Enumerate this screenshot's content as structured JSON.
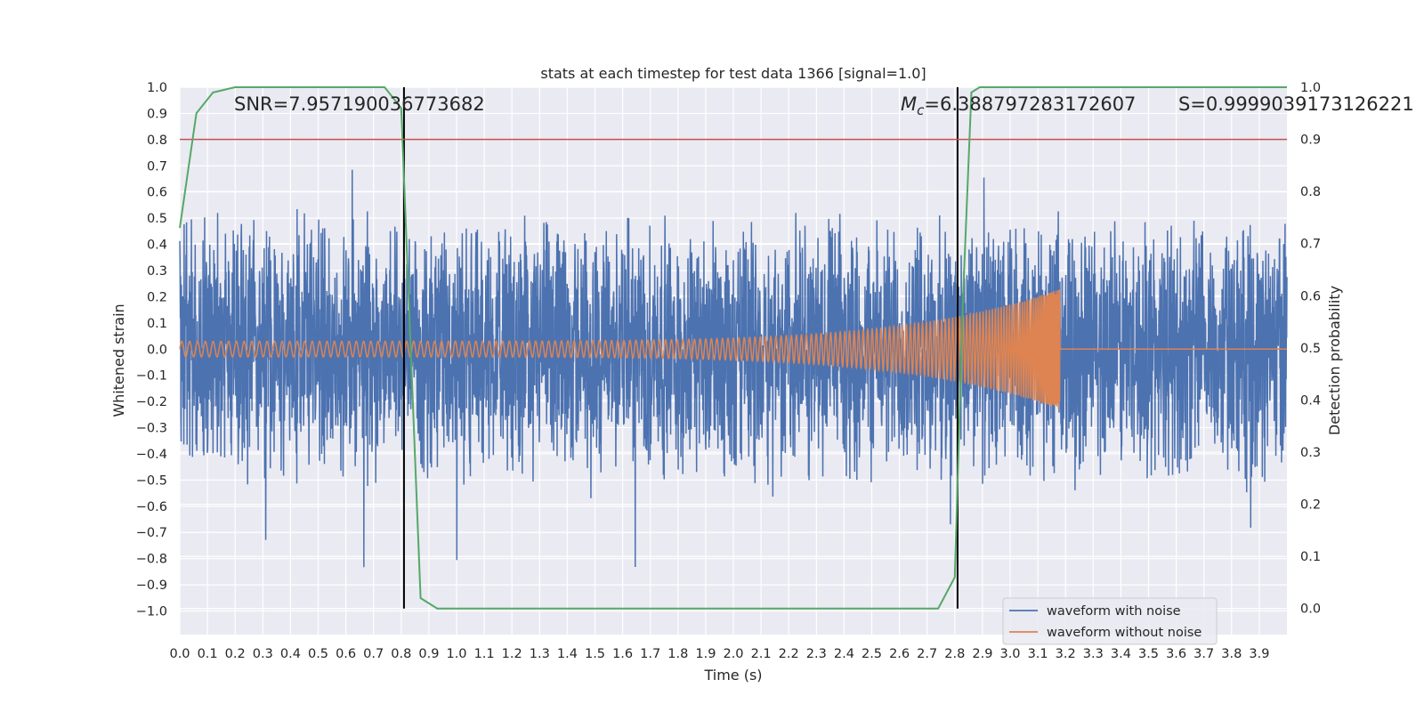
{
  "chart_data": {
    "type": "line",
    "title": "stats at each timestep for test data 1366 [signal=1.0]",
    "xlabel": "Time (s)",
    "ylabel": "Whitened strain",
    "y2label": "Detection probability",
    "xlim": [
      0.0,
      4.0
    ],
    "ylim": [
      -1.09,
      1.0
    ],
    "y2lim": [
      -0.05,
      1.0
    ],
    "xticks": [
      "0.0",
      "0.1",
      "0.2",
      "0.3",
      "0.4",
      "0.5",
      "0.6",
      "0.7",
      "0.8",
      "0.9",
      "1.0",
      "1.1",
      "1.2",
      "1.3",
      "1.4",
      "1.5",
      "1.6",
      "1.7",
      "1.8",
      "1.9",
      "2.0",
      "2.1",
      "2.2",
      "2.3",
      "2.4",
      "2.5",
      "2.6",
      "2.7",
      "2.8",
      "2.9",
      "3.0",
      "3.1",
      "3.2",
      "3.3",
      "3.4",
      "3.5",
      "3.6",
      "3.7",
      "3.8",
      "3.9"
    ],
    "yticks": [
      "1.0",
      "0.9",
      "0.8",
      "0.7",
      "0.6",
      "0.5",
      "0.4",
      "0.3",
      "0.2",
      "0.1",
      "0.0",
      "−0.1",
      "−0.2",
      "−0.3",
      "−0.4",
      "−0.5",
      "−0.6",
      "−0.7",
      "−0.8",
      "−0.9",
      "−1.0"
    ],
    "y2ticks": [
      "1.0",
      "0.9",
      "0.8",
      "0.7",
      "0.6",
      "0.5",
      "0.4",
      "0.3",
      "0.2",
      "0.1",
      "0.0"
    ],
    "annotations": {
      "snr": "SNR=7.957190036773682",
      "mc_symbol": "M",
      "mc_sub": "c",
      "mc_value": "=6.388797283172607",
      "s": "S=0.9999039173126221"
    },
    "threshold": 0.9,
    "vlines": [
      0.81,
      2.81
    ],
    "series": [
      {
        "name": "waveform with noise",
        "color": "#4c72b0",
        "kind": "noise",
        "amplitude": 0.55,
        "x_range": [
          0.0,
          4.0
        ]
      },
      {
        "name": "waveform without noise",
        "color": "#dd8452",
        "kind": "chirp",
        "amplitude_start": 0.03,
        "amplitude_end": 0.23,
        "merger_time": 3.18
      },
      {
        "name": "detection probability",
        "color": "#55a868",
        "axis": "right",
        "x": [
          0.0,
          0.06,
          0.12,
          0.2,
          0.3,
          0.5,
          0.74,
          0.8,
          0.87,
          0.93,
          1.0,
          1.5,
          2.0,
          2.5,
          2.74,
          2.8,
          2.83,
          2.86,
          2.89,
          3.0,
          3.5,
          4.0
        ],
        "values": [
          0.73,
          0.95,
          0.99,
          1.0,
          1.0,
          1.0,
          1.0,
          0.96,
          0.02,
          0.0,
          0.0,
          0.0,
          0.0,
          0.0,
          0.0,
          0.06,
          0.6,
          0.99,
          1.0,
          1.0,
          1.0,
          1.0
        ]
      },
      {
        "name": "threshold",
        "color": "#c44e52",
        "axis": "right",
        "value": 0.9
      }
    ],
    "legend": {
      "placement": "bottom-right",
      "entries": [
        "waveform with noise",
        "waveform without noise"
      ]
    }
  },
  "colors": {
    "plot_bg": "#eaeaf2",
    "grid": "#ffffff",
    "noise": "#4c72b0",
    "clean": "#dd8452",
    "prob": "#55a868",
    "threshold": "#c44e52",
    "vline": "#000000"
  }
}
